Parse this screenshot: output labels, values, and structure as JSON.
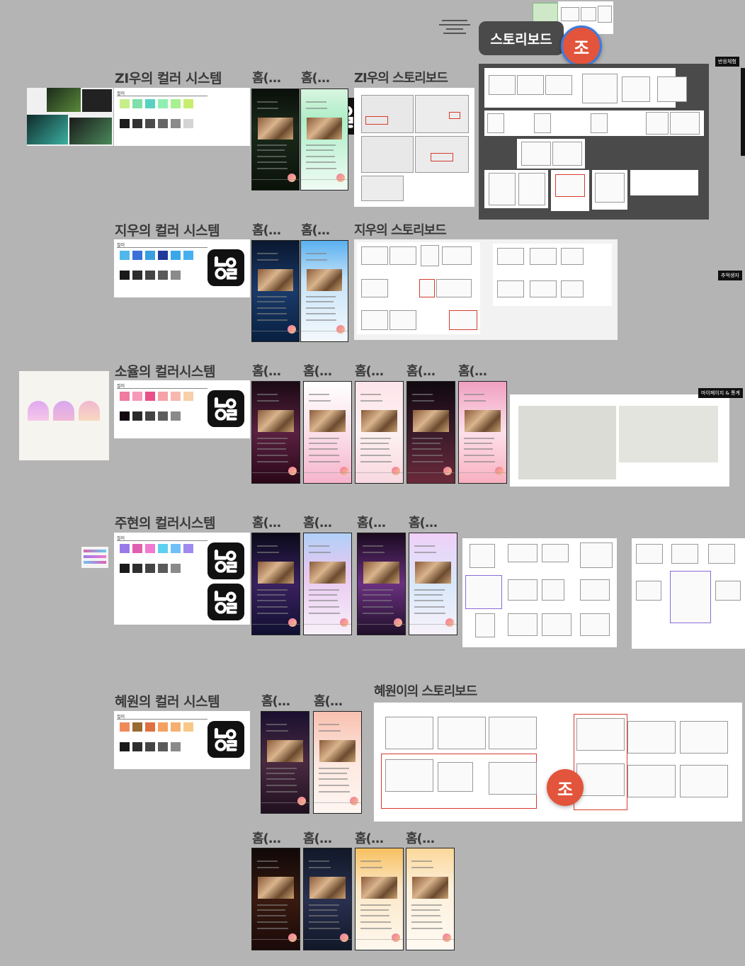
{
  "sections": {
    "s1_colors": "ZI우의 컬러 시스템",
    "s1_board": "ZI우의 스토리보드",
    "s2_colors": "지우의 컬러 시스템",
    "s2_board": "지우의 스토리보드",
    "s3_colors": "소율의 컬러시스템",
    "s4_colors": "주현의 컬러시스템",
    "s5_colors": "혜원의 컬러 시스템",
    "s5_board": "혜원이의 스토리보드"
  },
  "frame_label": "홈(...",
  "swatch_label": "컬러",
  "storyboard_tooltip": "스토리보드",
  "cursor_user": "조",
  "badges": {
    "b1": "반응체험",
    "b2": "추억생자",
    "b3": "마이페이지 & 통계"
  },
  "palettes": {
    "p1_top": [
      "#c6ee8a",
      "#7ee0a8",
      "#58d2c0",
      "#8ff0b0",
      "#a8f090",
      "#c8ee70"
    ],
    "p1_bottom": [
      "#1e1e1e",
      "#333333",
      "#4a4a4a",
      "#666666",
      "#8a8a8a",
      "#d4d4d4"
    ],
    "p2_top": [
      "#4fb8e8",
      "#3a70d8",
      "#38a0e0",
      "#1f3a9a",
      "#3aa8e8",
      "#45b0f0"
    ],
    "p2_bottom": [
      "#1a1a1a",
      "#2e2e2e",
      "#444444",
      "#5a5a5a",
      "#8a8a8a"
    ],
    "p3_top": [
      "#f07aa0",
      "#f59ab8",
      "#e8508a",
      "#f5a3a8",
      "#f7b8b0",
      "#f8cfa8"
    ],
    "p3_bottom": [
      "#110810",
      "#2a2a2a",
      "#444444",
      "#5e5e5e",
      "#8a8a8a"
    ],
    "p4_top": [
      "#9a7ae8",
      "#e060b0",
      "#f07ad0",
      "#5ed0f0",
      "#70c0f8",
      "#a08af0"
    ],
    "p4_bottom": [
      "#1a1a1a",
      "#2e2e2e",
      "#444444",
      "#5a5a5a",
      "#8a8a8a"
    ],
    "p5_top": [
      "#f08a5a",
      "#9a6a30",
      "#e07040",
      "#f5a060",
      "#f5b070",
      "#f8c888"
    ],
    "p5_bottom": [
      "#1a1a1a",
      "#2e2e2e",
      "#444444",
      "#5a5a5a",
      "#8a8a8a"
    ]
  }
}
